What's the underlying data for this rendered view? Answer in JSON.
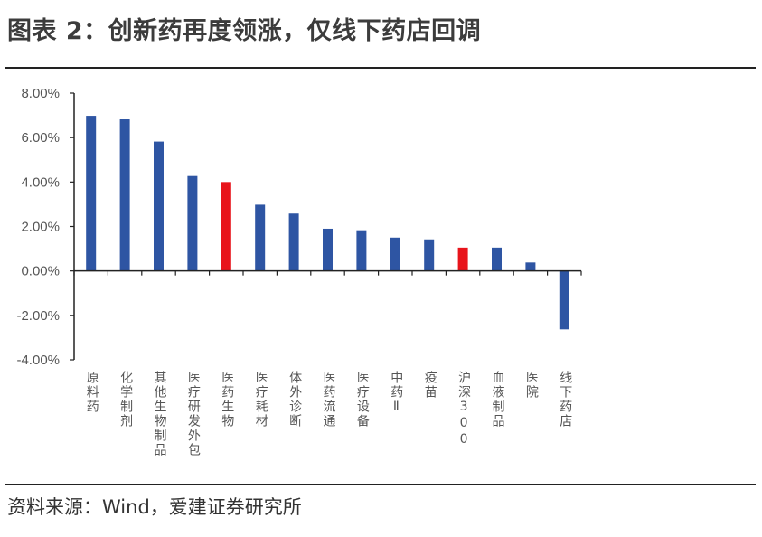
{
  "header": {
    "title": "图表 2：创新药再度领涨，仅线下药店回调"
  },
  "footer": {
    "source": "资料来源：Wind，爱建证券研究所"
  },
  "colors": {
    "bar": "#2e55a3",
    "highlight": "#e8141b",
    "axis": "#222222"
  },
  "chart_data": {
    "type": "bar",
    "title": "",
    "xlabel": "",
    "ylabel": "",
    "ylim": [
      -4,
      8
    ],
    "yticks": [
      8,
      6,
      4,
      2,
      0,
      -2,
      -4
    ],
    "ytick_labels": [
      "8.00%",
      "6.00%",
      "4.00%",
      "2.00%",
      "0.00%",
      "-2.00%",
      "-4.00%"
    ],
    "categories": [
      "原料药",
      "化学制剂",
      "其他生物制品",
      "医疗研发外包",
      "医药生物",
      "医疗耗材",
      "体外诊断",
      "医药流通",
      "医疗设备",
      "中药Ⅱ",
      "疫苗",
      "沪深300",
      "血液制品",
      "医院",
      "线下药店"
    ],
    "values": [
      6.98,
      6.82,
      5.82,
      4.27,
      4.0,
      2.98,
      2.58,
      1.9,
      1.83,
      1.5,
      1.42,
      1.05,
      1.05,
      0.38,
      -2.63
    ],
    "highlighted": [
      "医药生物",
      "沪深300"
    ],
    "grid": false,
    "legend": "none"
  }
}
